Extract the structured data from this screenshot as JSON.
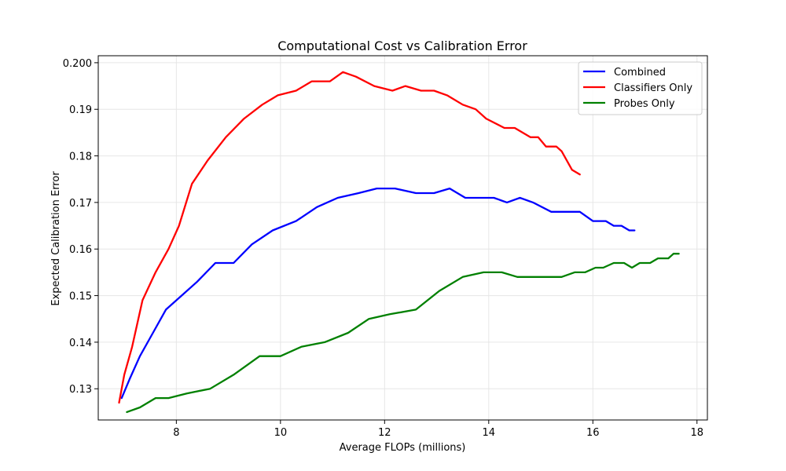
{
  "chart_data": {
    "type": "line",
    "title": "Computational Cost vs Calibration Error",
    "xlabel": "Average FLOPs (millions)",
    "ylabel": "Expected Calibration Error",
    "xlim": [
      6.5,
      18.2
    ],
    "ylim": [
      0.1233,
      0.2015
    ],
    "xticks": [
      8,
      10,
      12,
      14,
      16,
      18
    ],
    "yticks": [
      0.13,
      0.14,
      0.15,
      0.16,
      0.17,
      0.18,
      0.19,
      0.2
    ],
    "xtick_labels": [
      "8",
      "10",
      "12",
      "14",
      "16",
      "18"
    ],
    "ytick_labels": [
      "0.13",
      "0.14",
      "0.15",
      "0.16",
      "0.17",
      "0.18",
      "0.19",
      "0.200"
    ],
    "grid": true,
    "legend_position": "top-right",
    "series": [
      {
        "name": "Combined",
        "color": "#0000ff",
        "points": [
          [
            6.95,
            0.128
          ],
          [
            7.1,
            0.132
          ],
          [
            7.3,
            0.137
          ],
          [
            7.55,
            0.142
          ],
          [
            7.8,
            0.147
          ],
          [
            8.1,
            0.15
          ],
          [
            8.4,
            0.153
          ],
          [
            8.75,
            0.157
          ],
          [
            9.1,
            0.157
          ],
          [
            9.45,
            0.161
          ],
          [
            9.85,
            0.164
          ],
          [
            10.3,
            0.166
          ],
          [
            10.7,
            0.169
          ],
          [
            11.1,
            0.171
          ],
          [
            11.5,
            0.172
          ],
          [
            11.85,
            0.173
          ],
          [
            12.2,
            0.173
          ],
          [
            12.6,
            0.172
          ],
          [
            12.95,
            0.172
          ],
          [
            13.25,
            0.173
          ],
          [
            13.55,
            0.171
          ],
          [
            13.85,
            0.171
          ],
          [
            14.1,
            0.171
          ],
          [
            14.35,
            0.17
          ],
          [
            14.6,
            0.171
          ],
          [
            14.85,
            0.17
          ],
          [
            15.2,
            0.168
          ],
          [
            15.5,
            0.168
          ],
          [
            15.75,
            0.168
          ],
          [
            16.0,
            0.166
          ],
          [
            16.25,
            0.166
          ],
          [
            16.4,
            0.165
          ],
          [
            16.55,
            0.165
          ],
          [
            16.7,
            0.164
          ],
          [
            16.8,
            0.164
          ]
        ]
      },
      {
        "name": "Classifiers Only",
        "color": "#ff0000",
        "points": [
          [
            6.9,
            0.127
          ],
          [
            7.0,
            0.133
          ],
          [
            7.15,
            0.139
          ],
          [
            7.35,
            0.149
          ],
          [
            7.6,
            0.155
          ],
          [
            7.85,
            0.16
          ],
          [
            8.05,
            0.165
          ],
          [
            8.3,
            0.174
          ],
          [
            8.6,
            0.179
          ],
          [
            8.95,
            0.184
          ],
          [
            9.3,
            0.188
          ],
          [
            9.65,
            0.191
          ],
          [
            9.95,
            0.193
          ],
          [
            10.3,
            0.194
          ],
          [
            10.6,
            0.196
          ],
          [
            10.95,
            0.196
          ],
          [
            11.2,
            0.198
          ],
          [
            11.45,
            0.197
          ],
          [
            11.8,
            0.195
          ],
          [
            12.15,
            0.194
          ],
          [
            12.4,
            0.195
          ],
          [
            12.7,
            0.194
          ],
          [
            12.95,
            0.194
          ],
          [
            13.2,
            0.193
          ],
          [
            13.5,
            0.191
          ],
          [
            13.75,
            0.19
          ],
          [
            13.95,
            0.188
          ],
          [
            14.3,
            0.186
          ],
          [
            14.5,
            0.186
          ],
          [
            14.8,
            0.184
          ],
          [
            14.95,
            0.184
          ],
          [
            15.1,
            0.182
          ],
          [
            15.3,
            0.182
          ],
          [
            15.4,
            0.181
          ],
          [
            15.6,
            0.177
          ],
          [
            15.75,
            0.176
          ]
        ]
      },
      {
        "name": "Probes Only",
        "color": "#008000",
        "points": [
          [
            7.05,
            0.125
          ],
          [
            7.3,
            0.126
          ],
          [
            7.6,
            0.128
          ],
          [
            7.85,
            0.128
          ],
          [
            8.2,
            0.129
          ],
          [
            8.65,
            0.13
          ],
          [
            9.1,
            0.133
          ],
          [
            9.6,
            0.137
          ],
          [
            10.0,
            0.137
          ],
          [
            10.4,
            0.139
          ],
          [
            10.85,
            0.14
          ],
          [
            11.3,
            0.142
          ],
          [
            11.7,
            0.145
          ],
          [
            12.1,
            0.146
          ],
          [
            12.6,
            0.147
          ],
          [
            13.05,
            0.151
          ],
          [
            13.5,
            0.154
          ],
          [
            13.9,
            0.155
          ],
          [
            14.25,
            0.155
          ],
          [
            14.55,
            0.154
          ],
          [
            14.9,
            0.154
          ],
          [
            15.2,
            0.154
          ],
          [
            15.4,
            0.154
          ],
          [
            15.65,
            0.155
          ],
          [
            15.85,
            0.155
          ],
          [
            16.05,
            0.156
          ],
          [
            16.2,
            0.156
          ],
          [
            16.4,
            0.157
          ],
          [
            16.6,
            0.157
          ],
          [
            16.75,
            0.156
          ],
          [
            16.9,
            0.157
          ],
          [
            17.1,
            0.157
          ],
          [
            17.25,
            0.158
          ],
          [
            17.45,
            0.158
          ],
          [
            17.55,
            0.159
          ],
          [
            17.65,
            0.159
          ]
        ]
      }
    ]
  }
}
